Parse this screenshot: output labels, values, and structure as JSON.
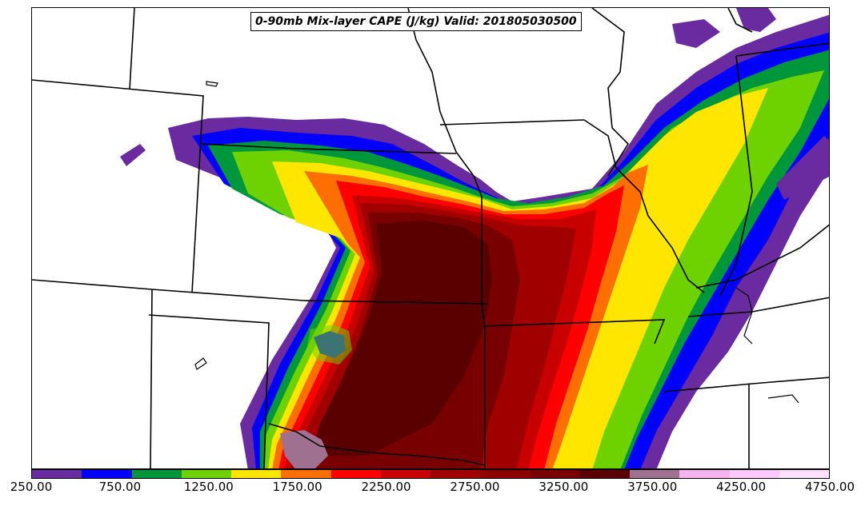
{
  "title": "0-90mb Mix-layer CAPE (J/kg) Valid: 201805030500",
  "colorbar": {
    "labels": [
      "250.00",
      "750.00",
      "1250.00",
      "1750.00",
      "2250.00",
      "2750.00",
      "3250.00",
      "3750.00",
      "4250.00",
      "4750.00"
    ],
    "colors": [
      "#6a2aa0",
      "#0000ff",
      "#00963c",
      "#6ed200",
      "#ffe600",
      "#ff6e00",
      "#ff0000",
      "#c80000",
      "#a00000",
      "#8c0000",
      "#780000",
      "#5a0000",
      "#a07090",
      "#f4b4f0",
      "#ffc8ff",
      "#ffe0ff"
    ]
  }
}
